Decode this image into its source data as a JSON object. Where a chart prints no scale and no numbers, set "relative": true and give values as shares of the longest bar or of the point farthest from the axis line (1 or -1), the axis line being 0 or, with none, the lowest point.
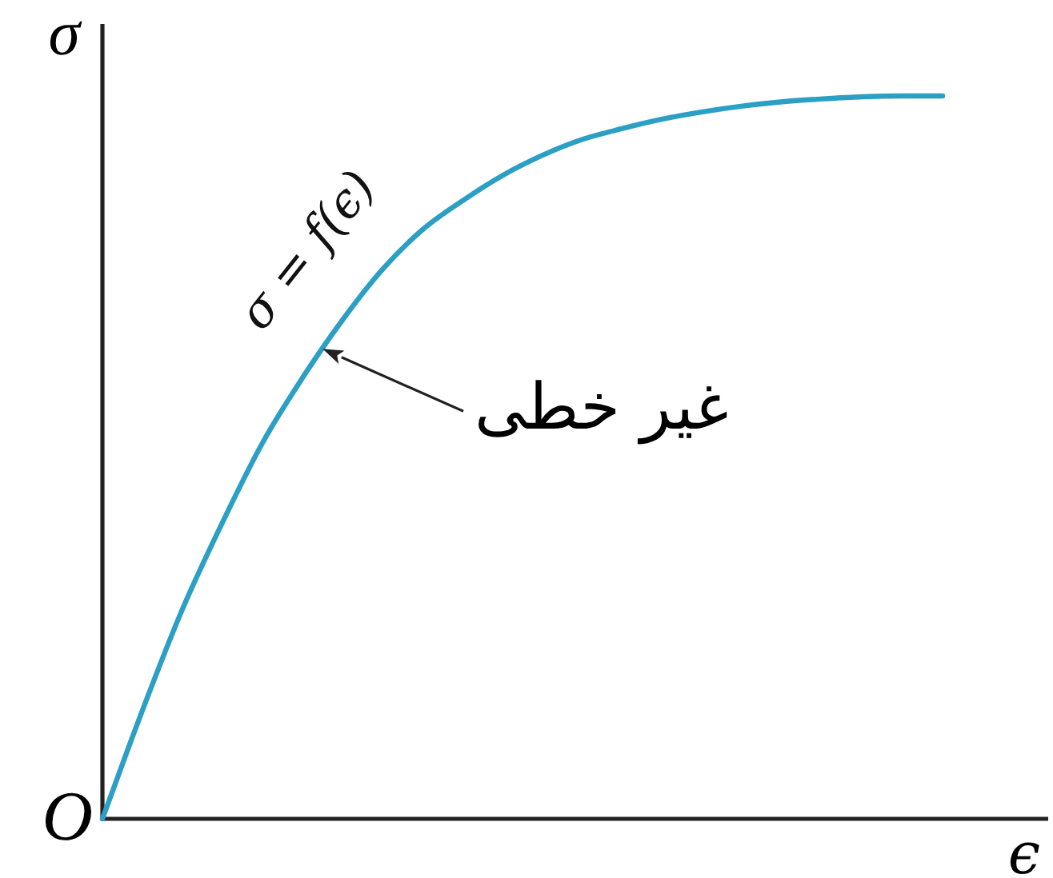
{
  "chart_data": {
    "type": "line",
    "relative": true,
    "xlabel": "ϵ",
    "ylabel": "σ",
    "categories": [
      null,
      null,
      null,
      null,
      null,
      null,
      null,
      null,
      null,
      null,
      null,
      null,
      null,
      null,
      null,
      null,
      null,
      null,
      null,
      null,
      null,
      null
    ],
    "series": [
      {
        "name": "σ = f(ϵ)",
        "color": "#2c9fc4",
        "values": [
          0,
          0.15,
          0.29,
          0.41,
          0.52,
          0.61,
          0.69,
          0.76,
          0.815,
          0.855,
          0.89,
          0.918,
          0.94,
          0.955,
          0.968,
          0.978,
          0.986,
          0.992,
          0.996,
          0.999,
          1.0,
          1.0
        ]
      }
    ],
    "annotations": [
      "O",
      "غیر خطی"
    ]
  }
}
